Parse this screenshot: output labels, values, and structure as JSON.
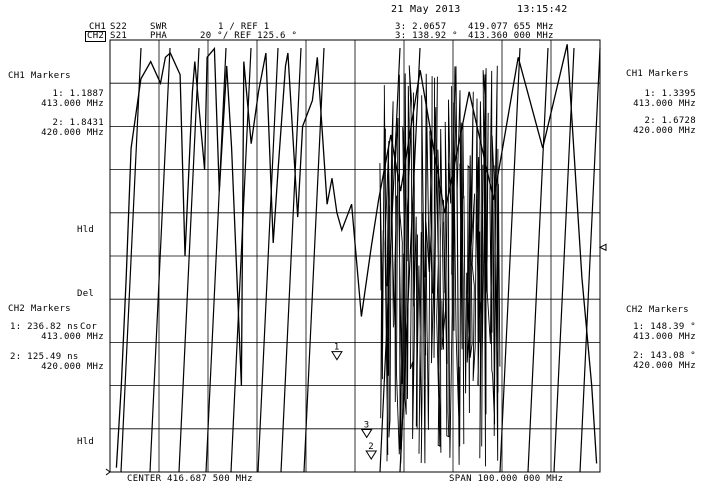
{
  "header": {
    "date": "21 May 2013",
    "time": "13:15:42",
    "ch1": {
      "label": "CH1",
      "param": "S22",
      "format": "SWR",
      "scale": "1 / REF 1",
      "marker": "3: 2.0657",
      "marker_freq": "419.077 655 MHz"
    },
    "ch2": {
      "label": "CH2",
      "param": "S21",
      "format": "PHA",
      "scale": "20 °/ REF 125.6 °",
      "marker": "3: 138.92 °",
      "marker_freq": "413.360 000 MHz"
    }
  },
  "left_panel": {
    "ch1_title": "CH1 Markers",
    "ch1_m1": "1: 1.1887",
    "ch1_m1_freq": "413.000 MHz",
    "ch1_m2": "2: 1.8431",
    "ch1_m2_freq": "420.000 MHz",
    "hld_upper": "Hld",
    "del": "Del",
    "ch2_title": "CH2 Markers",
    "ch2_m1": "1: 236.82 ns",
    "cor": "Cor",
    "ch2_m1_freq": "413.000 MHz",
    "ch2_m2": "2: 125.49 ns",
    "ch2_m2_freq": "420.000 MHz",
    "hld_lower": "Hld"
  },
  "right_panel": {
    "ch1_title": "CH1 Markers",
    "ch1_m1": "1: 1.3395",
    "ch1_m1_freq": "413.000 MHz",
    "ch1_m2": "2: 1.6728",
    "ch1_m2_freq": "420.000 MHz",
    "ch2_title": "CH2 Markers",
    "ch2_m1": "1: 148.39 °",
    "ch2_m1_freq": "413.000 MHz",
    "ch2_m2": "2: 143.08 °",
    "ch2_m2_freq": "420.000 MHz"
  },
  "footer": {
    "center": "CENTER 416.687 500 MHz",
    "span": "SPAN 100.000 000 MHz"
  },
  "chart_data": {
    "type": "line",
    "grid": true,
    "grid_divisions": {
      "x": 10,
      "y": 10
    },
    "x_range_mhz": [
      366.6875,
      466.6875
    ],
    "series": [
      {
        "x": [
          368.0,
          369.0,
          370.0,
          371.0,
          373.0,
          375.0,
          377.0,
          378.0,
          379.0,
          381.0,
          382.0,
          383.5,
          384.0,
          386.0,
          386.5,
          388.0,
          389.0,
          390.5,
          391.5,
          393.5,
          394.0,
          395.5,
          397.0,
          398.5,
          400.0,
          401.0,
          402.5,
          403.0,
          405.0,
          406.0,
          408.0,
          409.0,
          411.0,
          412.0,
          413.0,
          414.0,
          416.0,
          418.0,
          420.0,
          421.5,
          424.0,
          426.0,
          430.0,
          435.0,
          440.0,
          445.0,
          450.0,
          455.0,
          460.0,
          463.0,
          465.0,
          466.0
        ],
        "y_div": [
          0.1,
          2.0,
          4.5,
          7.5,
          9.1,
          9.5,
          9.0,
          9.6,
          9.7,
          9.2,
          5.0,
          8.8,
          9.5,
          7.0,
          9.6,
          9.8,
          6.5,
          9.4,
          7.5,
          2.0,
          9.5,
          7.6,
          8.8,
          9.7,
          5.3,
          7.0,
          9.4,
          9.7,
          5.9,
          8.0,
          8.6,
          9.6,
          6.2,
          6.8,
          6.0,
          5.6,
          6.2,
          3.6,
          5.2,
          6.3,
          7.8,
          6.5,
          9.3,
          6.0,
          8.8,
          6.3,
          9.6,
          7.5,
          9.9,
          4.5,
          2.0,
          0.2
        ]
      }
    ],
    "markers": [
      {
        "label": "1",
        "x_mhz": 413.0
      },
      {
        "label": "2",
        "x_mhz": 420.0
      },
      {
        "label": "3",
        "x_mhz": 419.08
      }
    ]
  }
}
